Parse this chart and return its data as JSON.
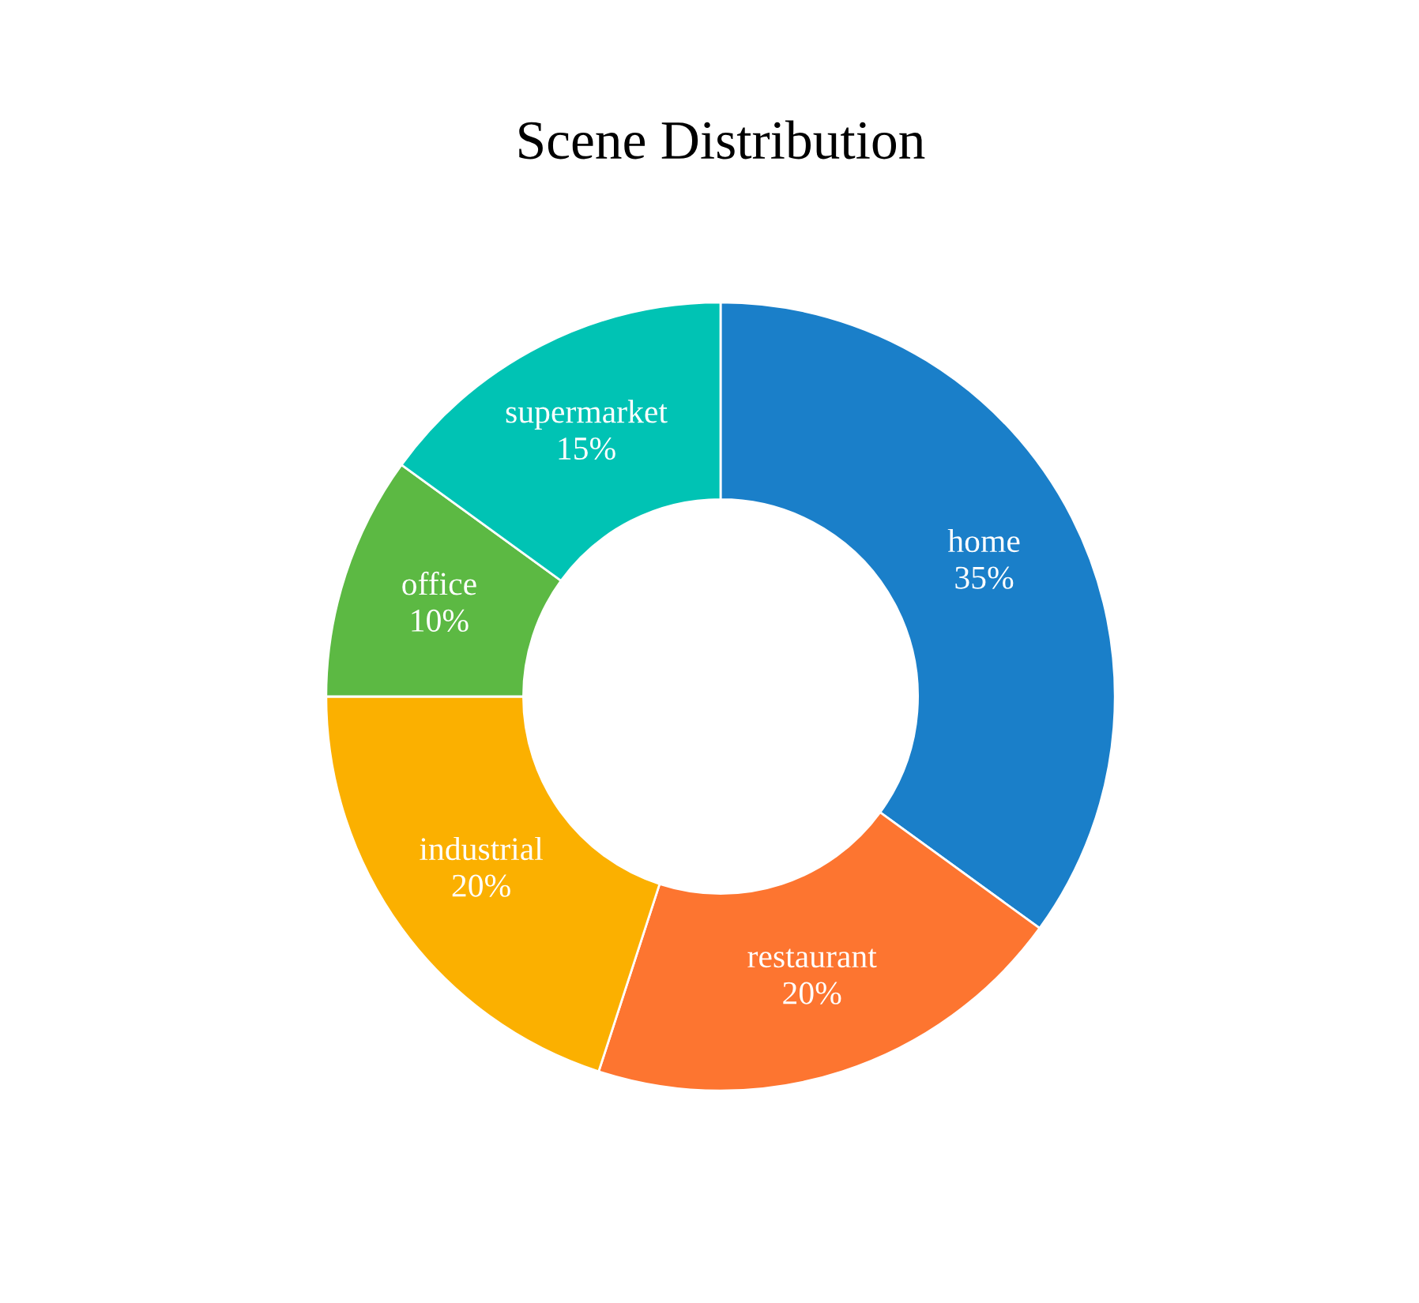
{
  "chart_data": {
    "type": "donut",
    "title": "Scene Distribution",
    "categories": [
      "home",
      "restaurant",
      "industrial",
      "office",
      "supermarket"
    ],
    "values": [
      35,
      20,
      20,
      10,
      15
    ],
    "value_labels": [
      "35%",
      "20%",
      "20%",
      "10%",
      "15%"
    ],
    "colors": [
      "#1a7fc9",
      "#fd7530",
      "#fbb000",
      "#5cb943",
      "#00c3b4"
    ],
    "legend": false
  }
}
